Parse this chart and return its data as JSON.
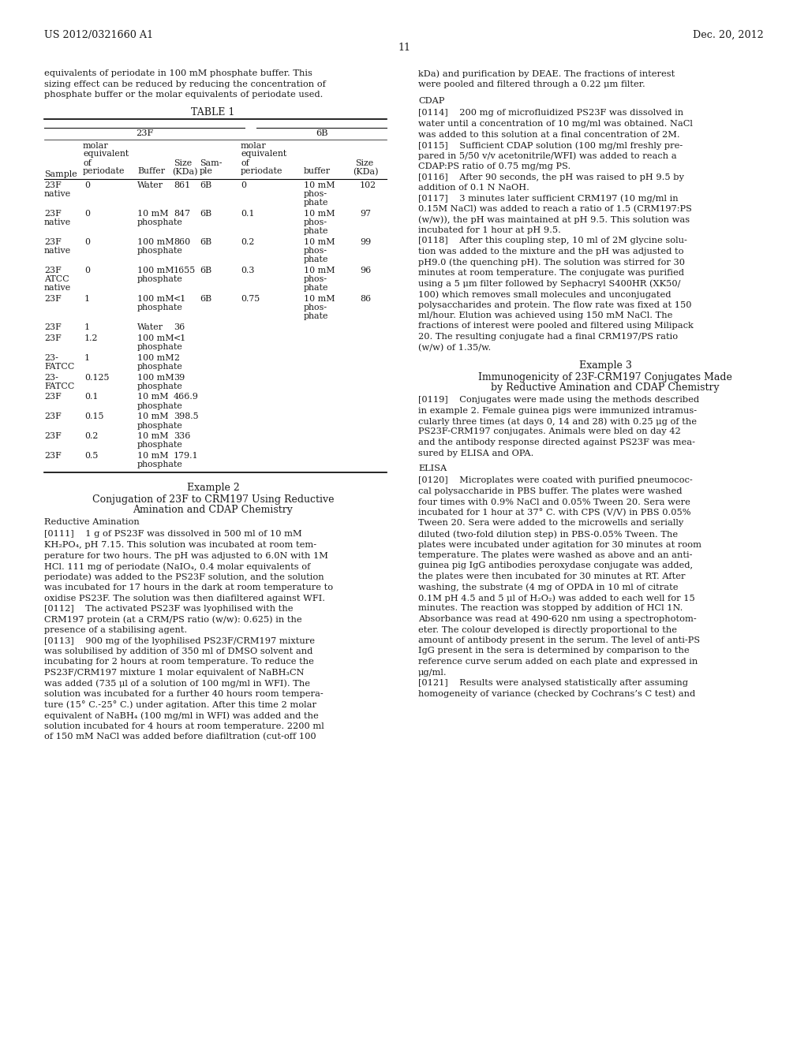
{
  "background_color": "#ffffff",
  "header_left": "US 2012/0321660 A1",
  "header_right": "Dec. 20, 2012",
  "page_number": "11"
}
